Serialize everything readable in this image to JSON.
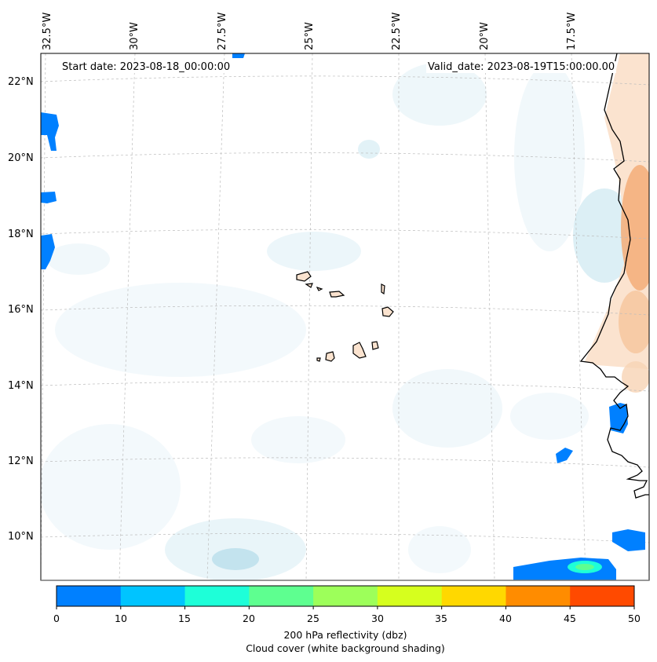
{
  "map": {
    "start_date": "Start date: 2023-08-18_00:00:00",
    "valid_date": "Valid_date: 2023-08-19T15:00:00.00",
    "longitude_labels": [
      "32.5°W",
      "30°W",
      "27.5°W",
      "25°W",
      "22.5°W",
      "20°W",
      "17.5°W"
    ],
    "latitude_labels": [
      "22°N",
      "20°N",
      "18°N",
      "16°N",
      "14°N",
      "12°N",
      "10°N"
    ],
    "extent": {
      "lon_min": -32.6,
      "lon_max": -15.5,
      "lat_min": 8.9,
      "lat_max": 22.8
    },
    "features": [
      "Cape Verde islands",
      "West African coastline",
      "Saharan dust shading"
    ]
  },
  "colorbar": {
    "ticks": [
      "0",
      "10",
      "15",
      "20",
      "25",
      "30",
      "35",
      "40",
      "45",
      "50"
    ],
    "colors": [
      "#0080ff",
      "#00c4ff",
      "#1effd8",
      "#5eff90",
      "#9dff5a",
      "#d6ff1e",
      "#ffd800",
      "#ff8c00",
      "#ff4a00"
    ],
    "title_line1": "200 hPa reflectivity (dbz)",
    "title_line2": "Cloud cover (white background shading)"
  }
}
